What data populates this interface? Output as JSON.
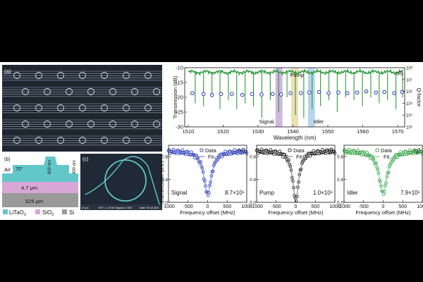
{
  "colors": {
    "background": "#000000",
    "panel": "#ffffff",
    "sem_bg": "#1f2a36",
    "waveguide": "#9aa8b8",
    "litao3": "#63c7c9",
    "sio2": "#d9a7d6",
    "si": "#9a9a9a",
    "transmission_green": "#2e9b3c",
    "qfactor_blue": "#2633b8",
    "signal_band": "#c9a9d8",
    "pump_band": "#ead9a5",
    "idler_band": "#a9cfe6",
    "dark": "#111111",
    "fit_signal": "#7a8cd8",
    "fit_pump": "#888888",
    "fit_idler": "#7fd39a"
  },
  "panel_a": {
    "label": "(a)",
    "rows": 5
  },
  "panel_b": {
    "label": "(b)",
    "angle": "70°",
    "air": "Air",
    "h_600": "600 nm",
    "h_400": "400 nm",
    "sio2_thick": "4.7 μm",
    "si_thick": "525 μm"
  },
  "panel_c": {
    "label": "(c)",
    "info_left": "10 μm",
    "info_mid": "EHT = 1.00 kV   Signal A = SE2",
    "info_right": "Date: 29 Jul 2022"
  },
  "legend": {
    "litao3_pre": "LiTaO",
    "litao3_sub": "3",
    "sio2_pre": "SiO",
    "sio2_sub": "2",
    "si": "Si"
  },
  "chart_data": [
    {
      "type": "line",
      "panel": "(d)",
      "xlabel": "Wavelength (nm)",
      "ylabel": "Transmission (dB)",
      "y2label": "Q-factor",
      "xlim": [
        1509,
        1572
      ],
      "ylim": [
        -30,
        -10
      ],
      "y2lim": [
        1000,
        100000000
      ],
      "xticks": [
        "1510",
        "1520",
        "1530",
        "1540",
        "1550",
        "1560",
        "1570"
      ],
      "yticks": [
        "-10",
        "-15",
        "-20",
        "-25",
        "-30"
      ],
      "y2ticks": [
        "10³",
        "10⁴",
        "10⁵",
        "10⁶",
        "10⁷",
        "10⁸"
      ],
      "baseline_db": -11.5,
      "resonances": [
        {
          "x": 1512.0,
          "depth": -22
        },
        {
          "x": 1514.4,
          "depth": -23
        },
        {
          "x": 1516.8,
          "depth": -20
        },
        {
          "x": 1519.1,
          "depth": -24
        },
        {
          "x": 1521.5,
          "depth": -21
        },
        {
          "x": 1523.9,
          "depth": -24
        },
        {
          "x": 1526.3,
          "depth": -22
        },
        {
          "x": 1528.7,
          "depth": -23
        },
        {
          "x": 1531.1,
          "depth": -27
        },
        {
          "x": 1533.5,
          "depth": -21
        },
        {
          "x": 1535.9,
          "depth": -25
        },
        {
          "x": 1538.3,
          "depth": -20
        },
        {
          "x": 1540.7,
          "depth": -26
        },
        {
          "x": 1543.1,
          "depth": -27
        },
        {
          "x": 1545.5,
          "depth": -24
        },
        {
          "x": 1547.9,
          "depth": -23
        },
        {
          "x": 1550.3,
          "depth": -21
        },
        {
          "x": 1552.7,
          "depth": -25
        },
        {
          "x": 1555.1,
          "depth": -20
        },
        {
          "x": 1557.5,
          "depth": -21
        },
        {
          "x": 1559.9,
          "depth": -23
        },
        {
          "x": 1562.3,
          "depth": -20
        },
        {
          "x": 1564.7,
          "depth": -22
        },
        {
          "x": 1567.1,
          "depth": -21
        },
        {
          "x": 1569.5,
          "depth": -24
        },
        {
          "x": 1571.4,
          "depth": -20
        }
      ],
      "qpoints": [
        {
          "x": 1511.2,
          "q": 700000
        },
        {
          "x": 1514.4,
          "q": 600000
        },
        {
          "x": 1516.8,
          "q": 500000
        },
        {
          "x": 1519.4,
          "q": 600000
        },
        {
          "x": 1522.5,
          "q": 600000
        },
        {
          "x": 1525.5,
          "q": 500000
        },
        {
          "x": 1528.3,
          "q": 600000
        },
        {
          "x": 1531.0,
          "q": 550000
        },
        {
          "x": 1534.2,
          "q": 600000
        },
        {
          "x": 1536.6,
          "q": 550000
        },
        {
          "x": 1539.3,
          "q": 700000
        },
        {
          "x": 1542.3,
          "q": 700000
        },
        {
          "x": 1544.7,
          "q": 800000
        },
        {
          "x": 1547.5,
          "q": 900000
        },
        {
          "x": 1550.2,
          "q": 700000
        },
        {
          "x": 1553.0,
          "q": 800000
        },
        {
          "x": 1555.6,
          "q": 700000
        },
        {
          "x": 1558.4,
          "q": 800000
        },
        {
          "x": 1561.0,
          "q": 1000000
        },
        {
          "x": 1563.8,
          "q": 800000
        },
        {
          "x": 1566.2,
          "q": 900000
        },
        {
          "x": 1569.0,
          "q": 700000
        },
        {
          "x": 1571.3,
          "q": 900000
        }
      ],
      "bands": [
        {
          "name": "Signal",
          "x0": 1535.0,
          "x1": 1537.0,
          "color": "#c9a9d8"
        },
        {
          "name": "Pump",
          "x0": 1539.5,
          "x1": 1541.5,
          "color": "#ead9a5"
        },
        {
          "name": "Idler",
          "x0": 1544.3,
          "x1": 1546.3,
          "color": "#a9cfe6"
        }
      ]
    },
    {
      "type": "scatter",
      "panel": "(e)",
      "name": "Signal",
      "q_text": "8.7×10⁵",
      "xlabel": "Frequency offset (MHz)",
      "ylabel": "Transmission (a.u.)",
      "xlim": [
        -1000,
        1000
      ],
      "ylim": [
        0,
        1
      ],
      "xticks": [
        "-1000",
        "-500",
        "0",
        "500",
        "1000"
      ],
      "yticks": [
        "0.0",
        "0.4",
        "0.8"
      ],
      "legend": [
        "Data",
        "Fit"
      ],
      "dip_depth": 0.76,
      "width_mhz": 230,
      "color": "#2633b8",
      "fit_color": "#7a8cd8"
    },
    {
      "type": "scatter",
      "panel": "(f)",
      "name": "Pump",
      "q_text": "1.0×10⁶",
      "xlabel": "Frequency offset (MHz)",
      "ylabel": "",
      "xlim": [
        -1000,
        1000
      ],
      "ylim": [
        0,
        1
      ],
      "xticks": [
        "-1000",
        "-500",
        "0",
        "500",
        "1000"
      ],
      "yticks": [
        "0.0",
        "0.4",
        "0.8"
      ],
      "legend": [
        "Data",
        "Fit"
      ],
      "dip_depth": 0.86,
      "width_mhz": 190,
      "color": "#111111",
      "fit_color": "#888888"
    },
    {
      "type": "scatter",
      "panel": "(g)",
      "name": "Idler",
      "q_text": "7.9×10⁵",
      "xlabel": "Frequency offset (MHz)",
      "ylabel": "",
      "xlim": [
        -1000,
        1000
      ],
      "ylim": [
        0,
        1
      ],
      "xticks": [
        "-1000",
        "-500",
        "0",
        "500",
        "1000"
      ],
      "yticks": [
        "0.0",
        "0.4",
        "0.8"
      ],
      "legend": [
        "Data",
        "Fit"
      ],
      "dip_depth": 0.74,
      "width_mhz": 250,
      "color": "#2e9b3c",
      "fit_color": "#7fd39a"
    }
  ]
}
